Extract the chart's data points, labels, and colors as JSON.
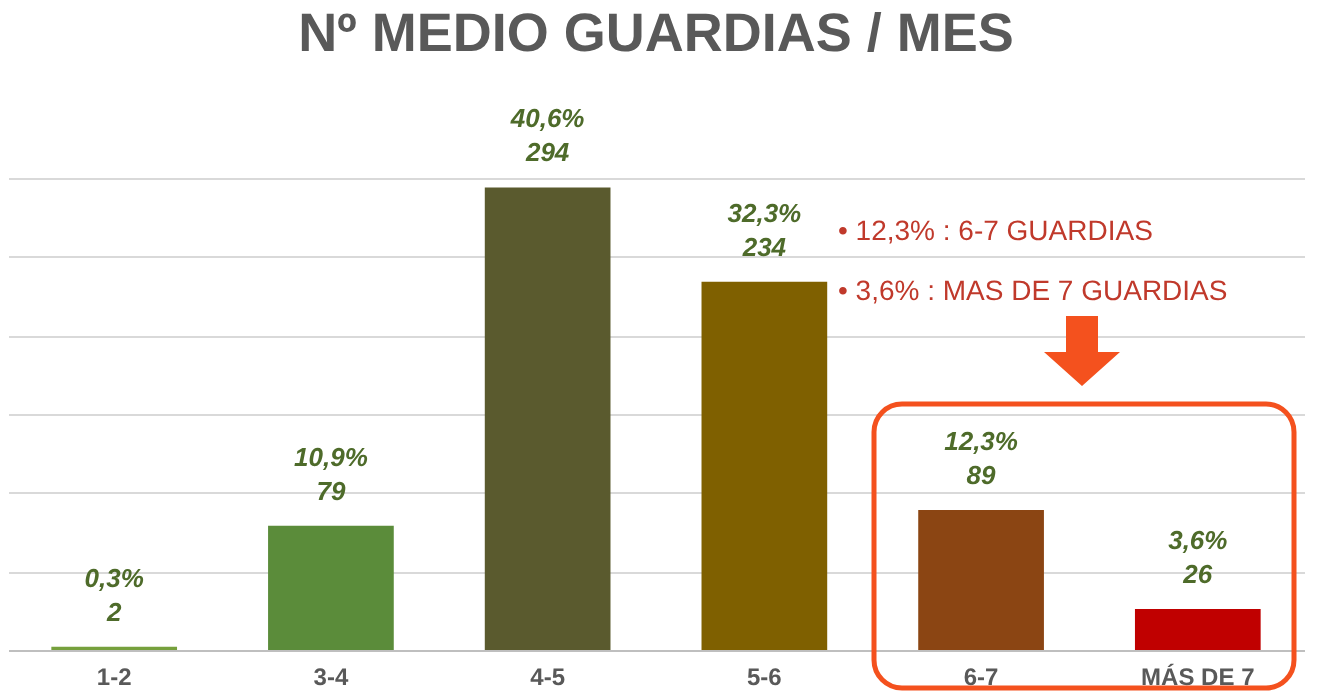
{
  "chart_data": {
    "type": "bar",
    "title": "Nº MEDIO GUARDIAS / MES",
    "categories": [
      "1-2",
      "3-4",
      "4-5",
      "5-6",
      "6-7",
      "MÁS DE 7"
    ],
    "values": [
      2,
      79,
      294,
      234,
      89,
      26
    ],
    "colors": [
      "#76a03c",
      "#5b8c3a",
      "#5a5a2e",
      "#7f6000",
      "#8b4513",
      "#c00000"
    ],
    "value_labels": [
      "0,3%\n2",
      "10,9%\n79",
      "40,6%\n294",
      "32,3%\n234",
      "12,3%\n89",
      "3,6%\n26"
    ],
    "grid": "y",
    "tick_labels": "x",
    "annotations": [
      "• 12,3% : 6-7 GUARDIAS",
      "• 3,6% : MAS DE 7 GUARDIAS"
    ]
  }
}
